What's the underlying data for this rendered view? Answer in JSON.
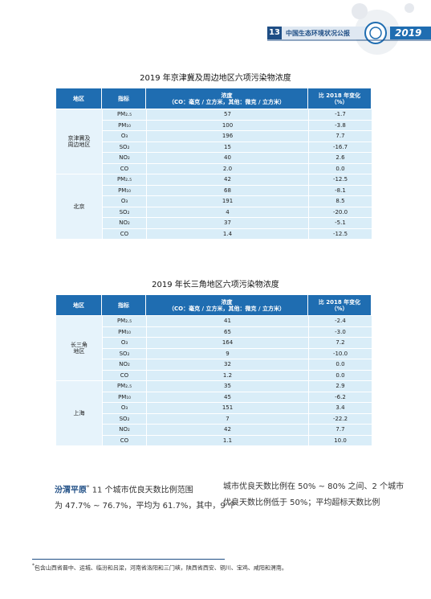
{
  "header": {
    "page": "13",
    "title": "中国生态环境状况公报",
    "year": "2019"
  },
  "tables": [
    {
      "title": "2019 年京津冀及周边地区六项污染物浓度",
      "columns": [
        "地区",
        "指标",
        "浓度",
        "（CO：毫克 / 立方米，其他：微克 / 立方米）",
        "比 2018 年变化",
        "（%）"
      ],
      "groups": [
        {
          "region": [
            "京津冀及",
            "周边地区"
          ],
          "rows": [
            [
              "PM₂.₅",
              "57",
              "-1.7"
            ],
            [
              "PM₁₀",
              "100",
              "-3.8"
            ],
            [
              "O₃",
              "196",
              "7.7"
            ],
            [
              "SO₂",
              "15",
              "-16.7"
            ],
            [
              "NO₂",
              "40",
              "2.6"
            ],
            [
              "CO",
              "2.0",
              "0.0"
            ]
          ]
        },
        {
          "region": [
            "北京"
          ],
          "rows": [
            [
              "PM₂.₅",
              "42",
              "-12.5"
            ],
            [
              "PM₁₀",
              "68",
              "-8.1"
            ],
            [
              "O₃",
              "191",
              "8.5"
            ],
            [
              "SO₂",
              "4",
              "-20.0"
            ],
            [
              "NO₂",
              "37",
              "-5.1"
            ],
            [
              "CO",
              "1.4",
              "-12.5"
            ]
          ]
        }
      ]
    },
    {
      "title": "2019 年长三角地区六项污染物浓度",
      "columns": [
        "地区",
        "指标",
        "浓度",
        "（CO：毫克 / 立方米，其他：微克 / 立方米）",
        "比 2018 年变化",
        "（%）"
      ],
      "groups": [
        {
          "region": [
            "长三角",
            "地区"
          ],
          "rows": [
            [
              "PM₂.₅",
              "41",
              "-2.4"
            ],
            [
              "PM₁₀",
              "65",
              "-3.0"
            ],
            [
              "O₃",
              "164",
              "7.2"
            ],
            [
              "SO₂",
              "9",
              "-10.0"
            ],
            [
              "NO₂",
              "32",
              "0.0"
            ],
            [
              "CO",
              "1.2",
              "0.0"
            ]
          ]
        },
        {
          "region": [
            "上海"
          ],
          "rows": [
            [
              "PM₂.₅",
              "35",
              "2.9"
            ],
            [
              "PM₁₀",
              "45",
              "-6.2"
            ],
            [
              "O₃",
              "151",
              "3.4"
            ],
            [
              "SO₂",
              "7",
              "-22.2"
            ],
            [
              "NO₂",
              "42",
              "7.7"
            ],
            [
              "CO",
              "1.1",
              "10.0"
            ]
          ]
        }
      ]
    }
  ],
  "body": {
    "heading": "汾渭平原",
    "mark": "*",
    "left": [
      "11 个城市优良天数比例范围",
      "为 47.7% ~ 76.7%，平均为 61.7%，其中，9 个"
    ],
    "right": [
      "城市优良天数比例在 50% ~ 80% 之间、2 个城市",
      "优良天数比例低于 50%；平均超标天数比例"
    ]
  },
  "footnote": {
    "mark": "*",
    "text": "包含山西省晋中、运城、临汾和吕梁，河南省洛阳和三门峡，陕西省西安、铜川、宝鸡、咸阳和渭南。"
  }
}
